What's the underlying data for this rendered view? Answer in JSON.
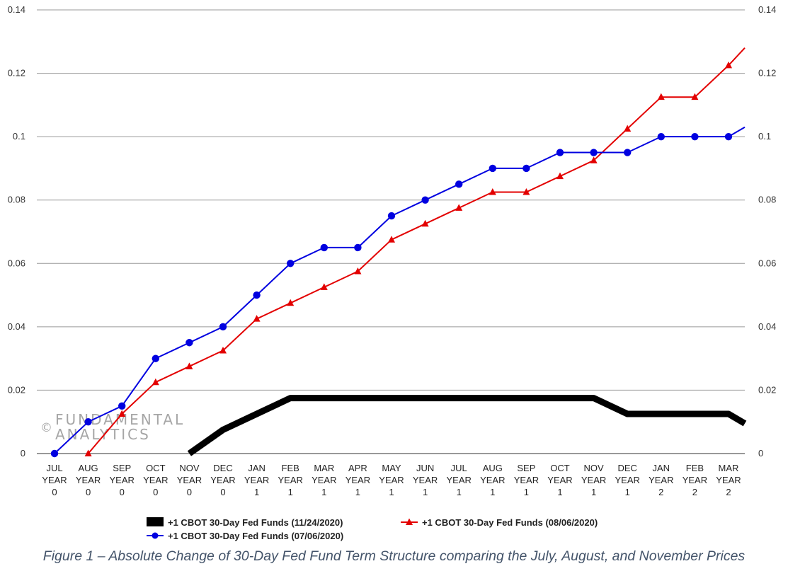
{
  "chart_data": {
    "type": "line",
    "categories": [
      [
        "JUL",
        "YEAR",
        "0"
      ],
      [
        "AUG",
        "YEAR",
        "0"
      ],
      [
        "SEP",
        "YEAR",
        "0"
      ],
      [
        "OCT",
        "YEAR",
        "0"
      ],
      [
        "NOV",
        "YEAR",
        "0"
      ],
      [
        "DEC",
        "YEAR",
        "0"
      ],
      [
        "JAN",
        "YEAR",
        "1"
      ],
      [
        "FEB",
        "YEAR",
        "1"
      ],
      [
        "MAR",
        "YEAR",
        "1"
      ],
      [
        "APR",
        "YEAR",
        "1"
      ],
      [
        "MAY",
        "YEAR",
        "1"
      ],
      [
        "JUN",
        "YEAR",
        "1"
      ],
      [
        "JUL",
        "YEAR",
        "1"
      ],
      [
        "AUG",
        "YEAR",
        "1"
      ],
      [
        "SEP",
        "YEAR",
        "1"
      ],
      [
        "OCT",
        "YEAR",
        "1"
      ],
      [
        "NOV",
        "YEAR",
        "1"
      ],
      [
        "DEC",
        "YEAR",
        "1"
      ],
      [
        "JAN",
        "YEAR",
        "2"
      ],
      [
        "FEB",
        "YEAR",
        "2"
      ],
      [
        "MAR",
        "YEAR",
        "2"
      ]
    ],
    "ylim": [
      0,
      0.14
    ],
    "yticks": [
      "0",
      "0.02",
      "0.04",
      "0.06",
      "0.08",
      "0.1",
      "0.12",
      "0.14"
    ],
    "grid": true,
    "legend_position": "bottom",
    "series": [
      {
        "name": "+1 CBOT 30-Day Fed Funds (11/24/2020)",
        "color": "#000000",
        "marker": "none",
        "values": [
          null,
          null,
          null,
          null,
          0,
          0.0075,
          0.0125,
          0.0175,
          0.0175,
          0.0175,
          0.0175,
          0.0175,
          0.0175,
          0.0175,
          0.0175,
          0.0175,
          0.0175,
          0.0125,
          0.0125,
          0.0125,
          0.0125
        ],
        "end_value": 0.0095
      },
      {
        "name": "+1 CBOT 30-Day Fed Funds (08/06/2020)",
        "color": "#e30000",
        "marker": "triangle",
        "values": [
          null,
          0,
          0.0125,
          0.0225,
          0.0275,
          0.0325,
          0.0425,
          0.0475,
          0.0525,
          0.0575,
          0.0675,
          0.0725,
          0.0775,
          0.0825,
          0.0825,
          0.0875,
          0.0925,
          0.1025,
          0.1125,
          0.1125,
          0.1225
        ],
        "end_value": 0.128
      },
      {
        "name": "+1 CBOT 30-Day Fed Funds (07/06/2020)",
        "color": "#0000e0",
        "marker": "circle",
        "values": [
          0,
          0.01,
          0.015,
          0.03,
          0.035,
          0.04,
          0.05,
          0.06,
          0.065,
          0.065,
          0.075,
          0.08,
          0.085,
          0.09,
          0.09,
          0.095,
          0.095,
          0.095,
          0.1,
          0.1,
          0.1
        ],
        "end_value": 0.103
      }
    ]
  },
  "watermark": {
    "symbol": "©",
    "line1": "FUNDAMENTAL",
    "line2": "ANALYTICS"
  },
  "caption": "Figure 1 – Absolute Change of 30-Day Fed Fund Term Structure comparing the July, August, and November Prices"
}
